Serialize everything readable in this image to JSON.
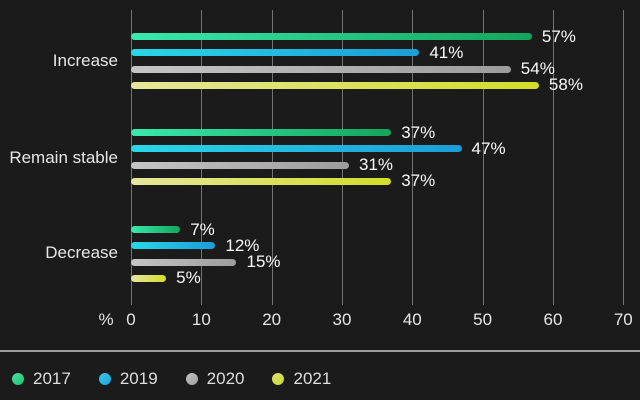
{
  "chart_data": {
    "type": "bar",
    "orientation": "horizontal",
    "categories": [
      "Increase",
      "Remain stable",
      "Decrease"
    ],
    "series": [
      {
        "name": "2017",
        "values": [
          57,
          37,
          7
        ],
        "gradient_start": "#38e9ae",
        "gradient_end": "#14a55c",
        "legend_dot_start": "#4fdfa0",
        "legend_dot_end": "#1fc276"
      },
      {
        "name": "2019",
        "values": [
          41,
          47,
          12
        ],
        "gradient_start": "#28d7e8",
        "gradient_end": "#1c9dd8",
        "legend_dot_start": "#3bc8ea",
        "legend_dot_end": "#1ba6dd"
      },
      {
        "name": "2020",
        "values": [
          54,
          31,
          15
        ],
        "gradient_start": "#c5c5c5",
        "gradient_end": "#9d9d9d",
        "legend_dot_start": "#c2c2c2",
        "legend_dot_end": "#9f9f9f"
      },
      {
        "name": "2021",
        "values": [
          58,
          37,
          5
        ],
        "gradient_start": "#e5e69c",
        "gradient_end": "#d3dd28",
        "legend_dot_start": "#e0e375",
        "legend_dot_end": "#ccd72e"
      }
    ],
    "value_suffix": "%",
    "x_axis": {
      "unit_label": "%",
      "ticks": [
        0,
        10,
        20,
        30,
        40,
        50,
        60,
        70
      ],
      "min": 0,
      "max": 70
    },
    "grid": true,
    "legend_position": "bottom"
  },
  "colors": {
    "background": "#1b1b1b",
    "gridline": "#737373",
    "value_label": "#fafafa",
    "category_label": "#e6e6e6",
    "tick_label": "#e6e6e6",
    "legend_text": "#dedede",
    "separator": "#9e9e9e"
  }
}
